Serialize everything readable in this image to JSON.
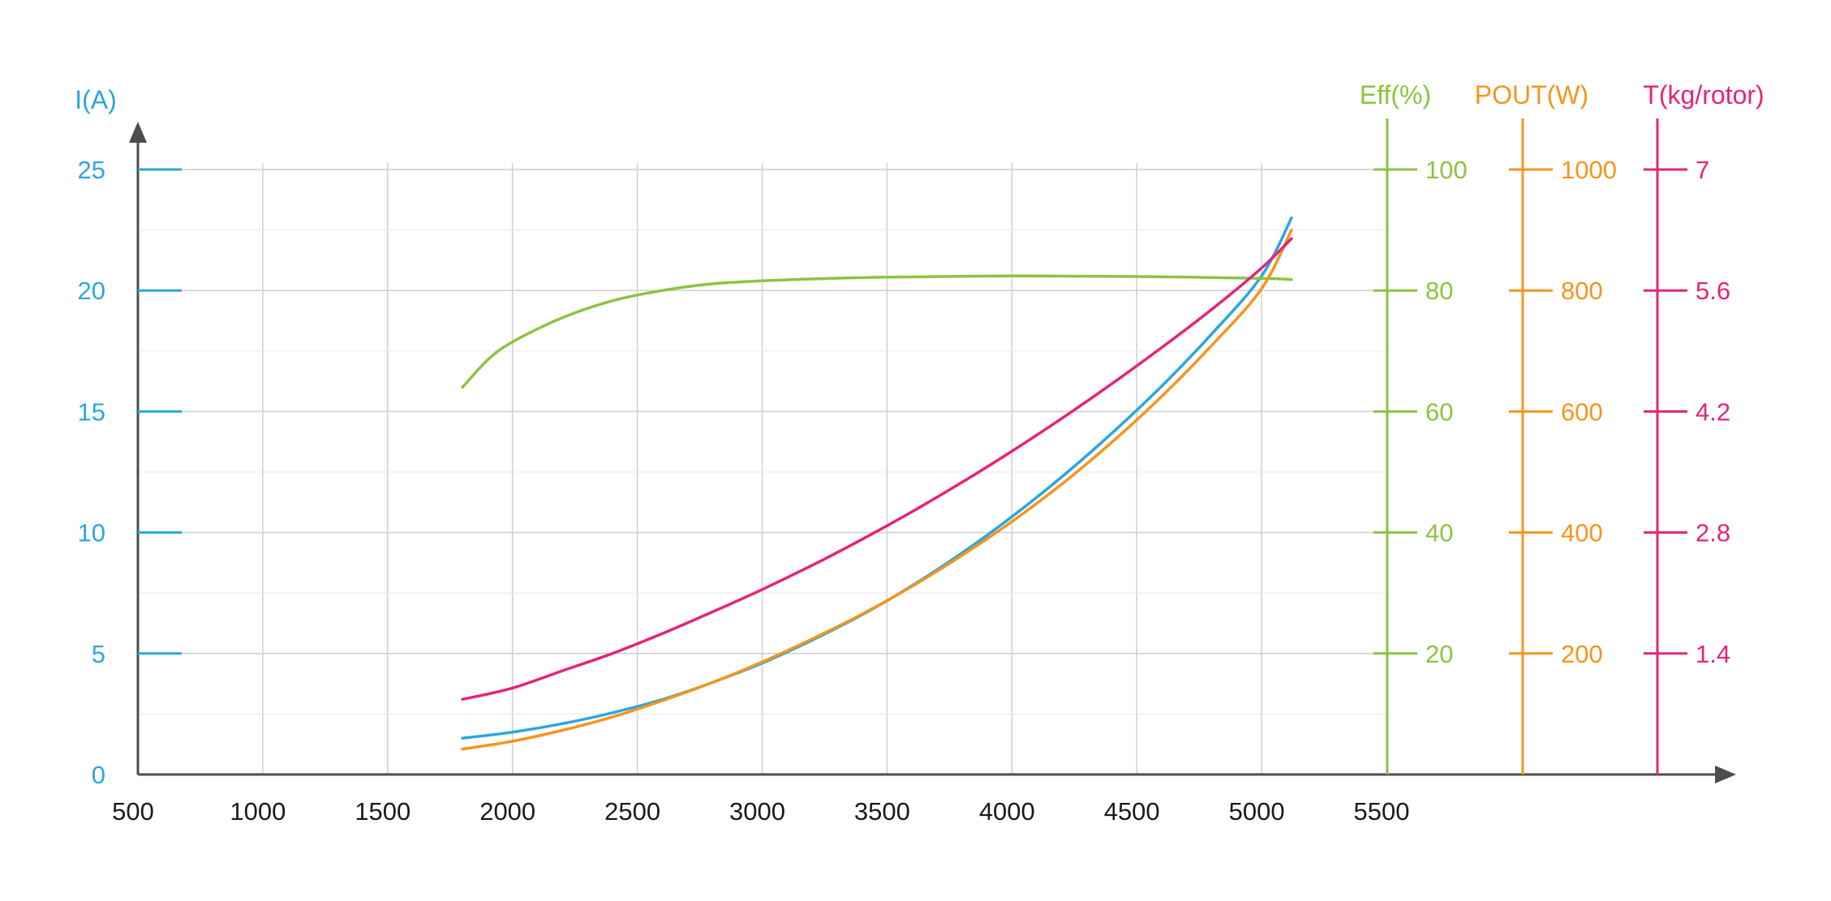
{
  "chart_data": {
    "type": "line",
    "x_axis": {
      "range": [
        500,
        5500
      ],
      "ticks": [
        500,
        1000,
        1500,
        2000,
        2500,
        3000,
        3500,
        4000,
        4500,
        5000,
        5500
      ],
      "tick_labels": [
        "500",
        "1000",
        "1500",
        "2000",
        "2500",
        "3000",
        "3500",
        "4000",
        "4500",
        "5000",
        "5500"
      ],
      "label": ""
    },
    "y_axes": [
      {
        "id": "current",
        "title": "I(A)",
        "color": "#2aa7df",
        "range": [
          0,
          25
        ],
        "ticks": [
          0,
          5,
          10,
          15,
          20,
          25
        ],
        "tick_labels": [
          "0",
          "5",
          "10",
          "15",
          "20",
          "25"
        ],
        "position": "left"
      },
      {
        "id": "efficiency",
        "title": "Eff(%)",
        "color": "#8cc43f",
        "range": [
          0,
          100
        ],
        "ticks": [
          20,
          40,
          60,
          80,
          100
        ],
        "tick_labels": [
          "20",
          "40",
          "60",
          "80",
          "100"
        ],
        "position": "right"
      },
      {
        "id": "power",
        "title": "POUT(W)",
        "color": "#f7941d",
        "range": [
          0,
          1000
        ],
        "ticks": [
          200,
          400,
          600,
          800,
          1000
        ],
        "tick_labels": [
          "200",
          "400",
          "600",
          "800",
          "1000"
        ],
        "position": "right"
      },
      {
        "id": "thrust",
        "title": "T(kg/rotor)",
        "color": "#e6237a",
        "range": [
          0,
          7
        ],
        "ticks": [
          1.4,
          2.8,
          4.2,
          5.6,
          7
        ],
        "tick_labels": [
          "1.4",
          "2.8",
          "4.2",
          "5.6",
          "7"
        ],
        "position": "right"
      }
    ],
    "grid": true,
    "legend": "none",
    "series": [
      {
        "axis": "current",
        "color": "#2aa7df",
        "x": [
          1800,
          2000,
          2200,
          2400,
          2600,
          2800,
          3000,
          3200,
          3400,
          3600,
          3800,
          4000,
          4200,
          4400,
          4600,
          4800,
          5000,
          5120
        ],
        "y": [
          1.5,
          1.75,
          2.1,
          2.55,
          3.1,
          3.8,
          4.6,
          5.55,
          6.6,
          7.8,
          9.15,
          10.65,
          12.3,
          14.1,
          16.05,
          18.2,
          20.6,
          23.0
        ]
      },
      {
        "axis": "efficiency",
        "color": "#8cc43f",
        "x": [
          1800,
          1900,
          2000,
          2200,
          2400,
          2600,
          2800,
          3000,
          3200,
          3500,
          4000,
          4500,
          5000,
          5120
        ],
        "y": [
          64,
          68.5,
          71.5,
          75.5,
          78.3,
          80.0,
          81.1,
          81.6,
          81.9,
          82.2,
          82.4,
          82.3,
          82.0,
          81.8
        ]
      },
      {
        "axis": "power",
        "color": "#f7941d",
        "x": [
          1800,
          2000,
          2200,
          2400,
          2600,
          2800,
          3000,
          3200,
          3400,
          3600,
          3800,
          4000,
          4200,
          4400,
          4600,
          4800,
          5000,
          5120
        ],
        "y": [
          42,
          55,
          73,
          95,
          122,
          152,
          186,
          224,
          265,
          311,
          362,
          418,
          480,
          549,
          625,
          709,
          803,
          900
        ]
      },
      {
        "axis": "thrust",
        "color": "#e6237a",
        "x": [
          1800,
          2000,
          2200,
          2400,
          2600,
          2800,
          3000,
          3200,
          3400,
          3600,
          3800,
          4000,
          4200,
          4400,
          4600,
          4800,
          5000,
          5120
        ],
        "y": [
          0.87,
          1.0,
          1.2,
          1.4,
          1.63,
          1.88,
          2.14,
          2.42,
          2.72,
          3.04,
          3.38,
          3.74,
          4.12,
          4.52,
          4.94,
          5.38,
          5.86,
          6.2
        ]
      }
    ]
  }
}
